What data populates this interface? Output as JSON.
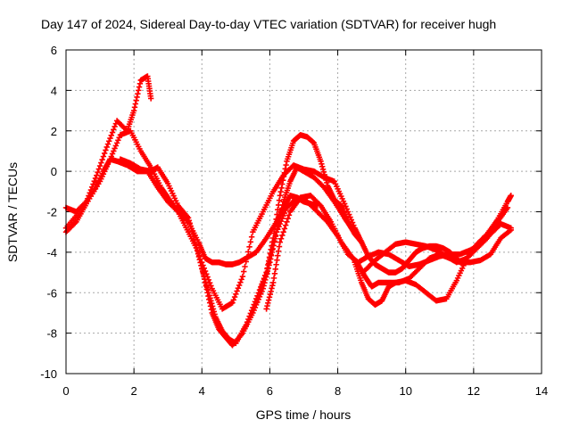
{
  "chart_data": {
    "type": "scatter",
    "title": "Day 147 of 2024, Sidereal Day-to-day VTEC variation (SDTVAR) for receiver hugh",
    "xlabel": "GPS time / hours",
    "ylabel": "SDTVAR / TECUs",
    "xlim": [
      0,
      14
    ],
    "ylim": [
      -10,
      6
    ],
    "xticks": [
      "0",
      "2",
      "4",
      "6",
      "8",
      "10",
      "12",
      "14"
    ],
    "yticks": [
      "-10",
      "-8",
      "-6",
      "-4",
      "-2",
      "0",
      "2",
      "4",
      "6"
    ],
    "grid": true,
    "marker": "plus",
    "color": "#ff0000",
    "series": [
      {
        "x": [
          0.0,
          0.3,
          0.6,
          0.9,
          1.2,
          1.5,
          1.8,
          2.0,
          2.2,
          2.4,
          2.5
        ],
        "y": [
          -1.8,
          -2.0,
          -1.5,
          -0.2,
          1.2,
          2.5,
          2.0,
          3.0,
          4.5,
          4.7,
          3.6
        ]
      },
      {
        "x": [
          0.0,
          0.3,
          0.6,
          1.0,
          1.3,
          1.6,
          1.9,
          2.2,
          2.5,
          2.8,
          3.0,
          3.3,
          3.6,
          3.9,
          4.1,
          4.3,
          4.5,
          4.7,
          4.9,
          5.1,
          5.3,
          5.6,
          5.9,
          6.2,
          6.4,
          6.6,
          6.8,
          7.0,
          7.2,
          7.4
        ],
        "y": [
          -3.0,
          -2.5,
          -1.6,
          -0.5,
          0.6,
          1.8,
          2.0,
          1.0,
          0.2,
          -0.8,
          -1.3,
          -2.0,
          -2.5,
          -3.5,
          -4.3,
          -4.5,
          -4.5,
          -4.6,
          -4.6,
          -4.5,
          -4.3,
          -4.0,
          -3.3,
          -2.5,
          -1.8,
          -1.2,
          -1.3,
          -1.5,
          -1.6,
          -1.7
        ]
      },
      {
        "x": [
          0.0,
          0.4,
          0.8,
          1.1,
          1.3,
          1.5,
          1.8,
          2.1,
          2.4,
          2.7,
          3.0,
          3.3,
          3.6,
          3.9,
          4.1,
          4.3,
          4.5,
          4.7,
          4.9,
          5.2,
          5.5,
          5.8,
          6.0,
          6.2,
          6.4,
          6.6,
          6.8,
          7.0,
          7.3,
          7.6,
          7.9,
          8.2,
          8.4,
          8.6
        ],
        "y": [
          -2.8,
          -2.0,
          -1.0,
          0.0,
          0.6,
          0.5,
          0.3,
          0.0,
          0.0,
          -0.8,
          -1.5,
          -2.0,
          -3.0,
          -4.0,
          -5.5,
          -7.0,
          -7.8,
          -8.2,
          -8.6,
          -8.0,
          -7.0,
          -5.8,
          -4.5,
          -3.0,
          -1.5,
          -0.5,
          0.2,
          0.0,
          -0.3,
          -0.8,
          -1.5,
          -2.3,
          -2.8,
          -3.2
        ]
      },
      {
        "x": [
          1.6,
          1.9,
          2.2,
          2.5,
          2.7,
          3.0,
          3.3,
          3.6,
          3.8,
          4.0,
          4.2,
          4.4,
          4.6,
          4.8,
          5.0,
          5.3,
          5.6,
          5.9,
          6.1,
          6.3,
          6.5,
          6.7,
          6.9,
          7.1,
          7.3,
          7.5,
          7.7,
          7.9,
          8.1,
          8.3,
          8.5,
          8.7
        ],
        "y": [
          0.6,
          0.4,
          0.1,
          0.0,
          0.2,
          -0.6,
          -1.7,
          -2.3,
          -3.5,
          -4.8,
          -6.0,
          -7.2,
          -7.9,
          -8.3,
          -8.5,
          -7.6,
          -6.3,
          -5.0,
          -3.3,
          -1.2,
          0.5,
          1.5,
          1.8,
          1.7,
          1.4,
          0.5,
          -0.7,
          -1.4,
          -1.7,
          -2.5,
          -3.1,
          -3.5
        ]
      },
      {
        "x": [
          4.0,
          4.3,
          4.6,
          4.9,
          5.2,
          5.5,
          5.8,
          6.1,
          6.4,
          6.7,
          7.0,
          7.3,
          7.6,
          7.9,
          8.2,
          8.5,
          8.7,
          8.9,
          9.1,
          9.3,
          9.5,
          9.7,
          9.9,
          10.1,
          10.3,
          10.5,
          10.7,
          10.9,
          11.1,
          11.3,
          11.5
        ],
        "y": [
          -4.5,
          -5.8,
          -6.8,
          -6.5,
          -5.2,
          -3.0,
          -2.0,
          -1.0,
          -0.2,
          0.3,
          0.1,
          0.0,
          -0.3,
          -0.5,
          -1.6,
          -2.8,
          -3.5,
          -4.2,
          -4.6,
          -4.8,
          -5.0,
          -5.0,
          -4.8,
          -4.4,
          -4.0,
          -3.8,
          -3.7,
          -3.7,
          -3.8,
          -4.0,
          -4.3
        ]
      },
      {
        "x": [
          5.9,
          6.1,
          6.3,
          6.6,
          6.9,
          7.2,
          7.5,
          7.8,
          8.1,
          8.4,
          8.6,
          8.8,
          9.0,
          9.2,
          9.5,
          9.8,
          10.1,
          10.4,
          10.7,
          11.0,
          11.3,
          11.6,
          11.9,
          12.2,
          12.5,
          12.8,
          13.1
        ],
        "y": [
          -6.8,
          -5.5,
          -3.5,
          -2.0,
          -1.3,
          -1.2,
          -1.7,
          -2.5,
          -3.5,
          -4.2,
          -4.6,
          -5.2,
          -5.7,
          -5.5,
          -5.5,
          -5.5,
          -5.3,
          -4.8,
          -4.3,
          -4.1,
          -4.3,
          -4.5,
          -4.5,
          -4.4,
          -4.1,
          -3.3,
          -2.9
        ]
      },
      {
        "x": [
          5.6,
          5.9,
          6.2,
          6.5,
          6.8,
          7.1,
          7.4,
          7.7,
          8.0,
          8.3,
          8.6,
          8.9,
          9.2,
          9.5,
          9.8,
          10.1,
          10.4,
          10.7,
          11.0,
          11.3,
          11.6,
          11.9,
          12.2,
          12.5,
          12.8,
          13.1
        ],
        "y": [
          -6.5,
          -5.0,
          -3.0,
          -1.8,
          -1.3,
          -1.5,
          -2.0,
          -2.5,
          -3.2,
          -4.1,
          -4.5,
          -4.2,
          -4.0,
          -4.1,
          -4.4,
          -4.7,
          -4.6,
          -4.4,
          -4.2,
          -4.1,
          -4.1,
          -3.9,
          -3.6,
          -3.1,
          -2.6,
          -2.8
        ]
      },
      {
        "x": [
          8.5,
          8.7,
          8.9,
          9.1,
          9.3,
          9.5,
          9.7,
          10.0,
          10.3,
          10.6,
          10.9,
          11.2,
          11.5,
          11.8,
          12.1,
          12.4,
          12.7,
          13.0,
          13.1
        ],
        "y": [
          -4.5,
          -5.5,
          -6.3,
          -6.6,
          -6.4,
          -5.7,
          -5.5,
          -5.4,
          -5.6,
          -6.0,
          -6.4,
          -6.3,
          -5.4,
          -4.3,
          -3.6,
          -3.1,
          -2.4,
          -1.5,
          -1.2
        ]
      },
      {
        "x": [
          8.8,
          9.1,
          9.4,
          9.7,
          10.0,
          10.3,
          10.6,
          10.9,
          11.2,
          11.5,
          11.8,
          12.1,
          12.4,
          12.7,
          13.0
        ],
        "y": [
          -4.9,
          -4.4,
          -4.0,
          -3.6,
          -3.5,
          -3.6,
          -3.7,
          -3.9,
          -4.2,
          -4.5,
          -4.3,
          -3.8,
          -3.3,
          -2.5,
          -1.8
        ]
      }
    ]
  }
}
